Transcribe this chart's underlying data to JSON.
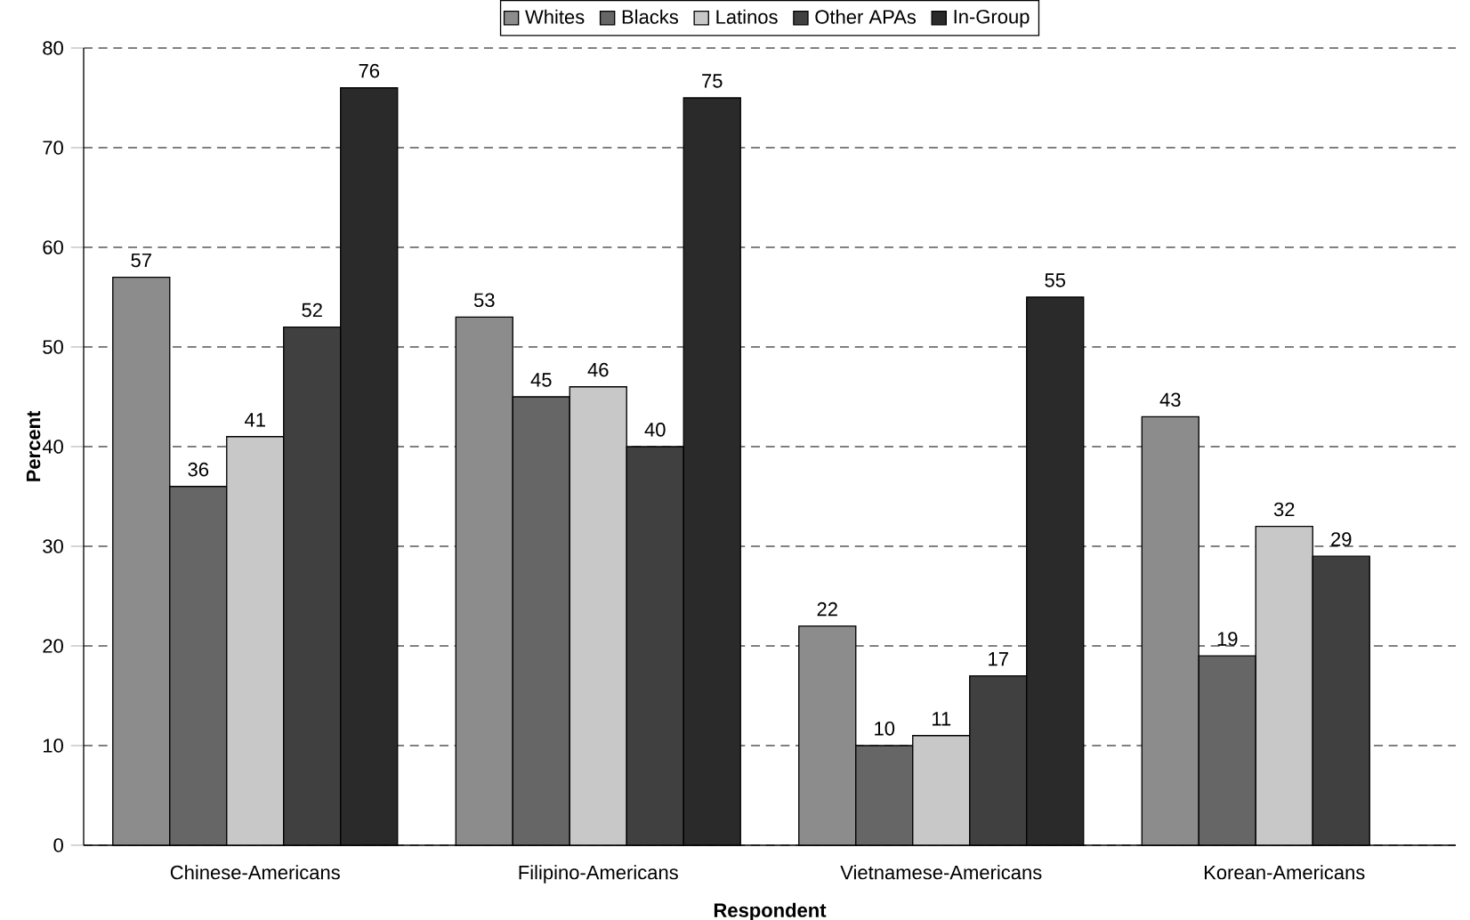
{
  "chart_data": {
    "type": "bar",
    "xlabel": "Respondent",
    "ylabel": "Percent",
    "categories": [
      "Chinese-Americans",
      "Filipino-Americans",
      "Vietnamese-Americans",
      "Korean-Americans"
    ],
    "series": [
      {
        "name": "Whites",
        "color": "#8c8c8c",
        "values": [
          57,
          53,
          22,
          43
        ]
      },
      {
        "name": "Blacks",
        "color": "#666666",
        "values": [
          36,
          45,
          10,
          19
        ]
      },
      {
        "name": "Latinos",
        "color": "#c8c8c8",
        "values": [
          41,
          46,
          11,
          32
        ]
      },
      {
        "name": "Other APAs",
        "color": "#404040",
        "values": [
          52,
          40,
          17,
          29
        ]
      },
      {
        "name": "In-Group",
        "color": "#2a2a2a",
        "values": [
          76,
          75,
          55,
          null
        ]
      }
    ],
    "ylim": [
      0,
      80
    ],
    "yticks": [
      0,
      10,
      20,
      30,
      40,
      50,
      60,
      70,
      80
    ],
    "grid": "y",
    "legend": "top",
    "data_labels": true
  }
}
